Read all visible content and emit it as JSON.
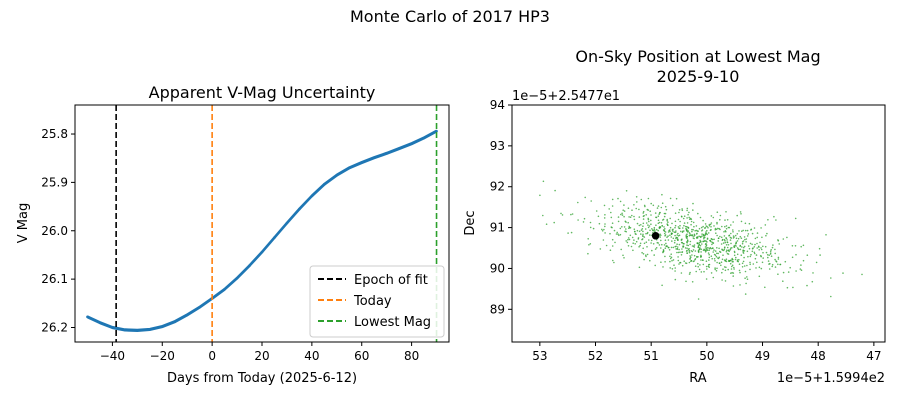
{
  "figure": {
    "suptitle": "Monte Carlo of 2017 HP3"
  },
  "chart_data": [
    {
      "type": "line",
      "title": "Apparent V-Mag Uncertainty",
      "xlabel": "Days from Today (2025-6-12)",
      "ylabel": "V Mag",
      "xlim": [
        -55,
        95
      ],
      "ylim": [
        26.23,
        25.74
      ],
      "y_inverted": true,
      "xticks": [
        -40,
        -20,
        0,
        20,
        40,
        60,
        80
      ],
      "yticks": [
        25.8,
        25.9,
        26.0,
        26.1,
        26.2
      ],
      "series": [
        {
          "color": "#1f77b4",
          "x": [
            -50,
            -45,
            -40,
            -35,
            -30,
            -25,
            -20,
            -15,
            -10,
            -5,
            0,
            5,
            10,
            15,
            20,
            25,
            30,
            35,
            40,
            45,
            50,
            55,
            60,
            65,
            70,
            75,
            80,
            85,
            90
          ],
          "y": [
            26.178,
            26.19,
            26.2,
            26.205,
            26.206,
            26.204,
            26.198,
            26.188,
            26.174,
            26.158,
            26.14,
            26.121,
            26.098,
            26.072,
            26.044,
            26.014,
            25.984,
            25.955,
            25.928,
            25.904,
            25.885,
            25.87,
            25.859,
            25.849,
            25.84,
            25.83,
            25.82,
            25.808,
            25.794
          ]
        }
      ],
      "vlines": [
        {
          "x": -38.5,
          "color": "#000000",
          "label": "Epoch of fit"
        },
        {
          "x": 0,
          "color": "#ff7f0e",
          "label": "Today"
        },
        {
          "x": 90,
          "color": "#2ca02c",
          "label": "Lowest Mag"
        }
      ],
      "legend": "lower-right"
    },
    {
      "type": "scatter",
      "title": "On-Sky Position at Lowest Mag",
      "subtitle": "2025-9-10",
      "xlabel": "RA",
      "ylabel": "Dec",
      "x_offset_text": "1e−5+1.5994e2",
      "y_offset_text": "1e−5+2.5477e1",
      "xlim": [
        53.5,
        46.8
      ],
      "ylim": [
        88.2,
        94
      ],
      "x_inverted": true,
      "xticks": [
        53,
        52,
        51,
        50,
        49,
        48,
        47
      ],
      "yticks": [
        89,
        90,
        91,
        92,
        93,
        94
      ],
      "cloud": {
        "color": "#2ca02c",
        "count": 1000,
        "mean": [
          50.3,
          90.7
        ],
        "std_major": 0.95,
        "std_minor": 0.45,
        "angle_deg": 26,
        "seed": 7
      },
      "marker": {
        "x": 50.92,
        "y": 90.8,
        "color": "#000000"
      }
    }
  ]
}
